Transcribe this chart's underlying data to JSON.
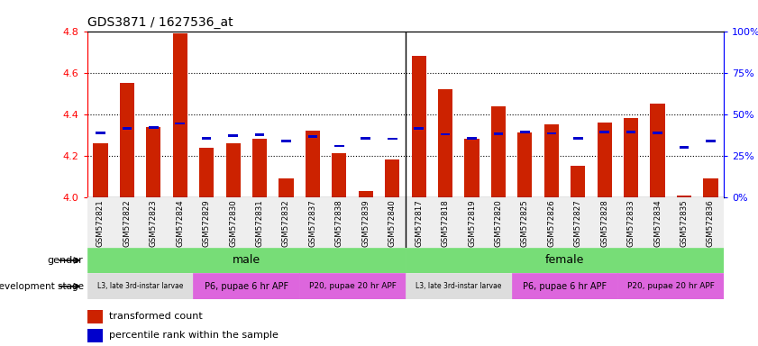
{
  "title": "GDS3871 / 1627536_at",
  "samples": [
    "GSM572821",
    "GSM572822",
    "GSM572823",
    "GSM572824",
    "GSM572829",
    "GSM572830",
    "GSM572831",
    "GSM572832",
    "GSM572837",
    "GSM572838",
    "GSM572839",
    "GSM572840",
    "GSM572817",
    "GSM572818",
    "GSM572819",
    "GSM572820",
    "GSM572825",
    "GSM572826",
    "GSM572827",
    "GSM572828",
    "GSM572833",
    "GSM572834",
    "GSM572835",
    "GSM572836"
  ],
  "bar_values": [
    4.26,
    4.55,
    4.34,
    4.79,
    4.24,
    4.26,
    4.28,
    4.09,
    4.32,
    4.21,
    4.03,
    4.18,
    4.68,
    4.52,
    4.28,
    4.44,
    4.31,
    4.35,
    4.15,
    4.36,
    4.38,
    4.45,
    4.01,
    4.09
  ],
  "percentile_values": [
    4.31,
    4.33,
    4.335,
    4.355,
    4.285,
    4.298,
    4.302,
    4.27,
    4.293,
    4.247,
    4.284,
    4.282,
    4.333,
    4.303,
    4.285,
    4.305,
    4.313,
    4.308,
    4.285,
    4.313,
    4.315,
    4.31,
    4.242,
    4.272
  ],
  "bar_color": "#cc2200",
  "percentile_color": "#0000cc",
  "ymin": 4.0,
  "ymax": 4.8,
  "yticks": [
    4.0,
    4.2,
    4.4,
    4.6,
    4.8
  ],
  "grid_lines": [
    4.2,
    4.4,
    4.6
  ],
  "right_yticks": [
    0,
    25,
    50,
    75,
    100
  ],
  "right_yticklabels": [
    "0%",
    "25%",
    "50%",
    "75%",
    "100%"
  ],
  "male_count": 12,
  "female_count": 12,
  "gender_color": "#77dd77",
  "dev_stage_l3_color": "#dddddd",
  "dev_stage_p6_color": "#dd66dd",
  "dev_stage_p20_color": "#dd66dd",
  "l3_label": "L3, late 3rd-instar larvae",
  "p6_label": "P6, pupae 6 hr APF",
  "p20_label": "P20, pupae 20 hr APF"
}
